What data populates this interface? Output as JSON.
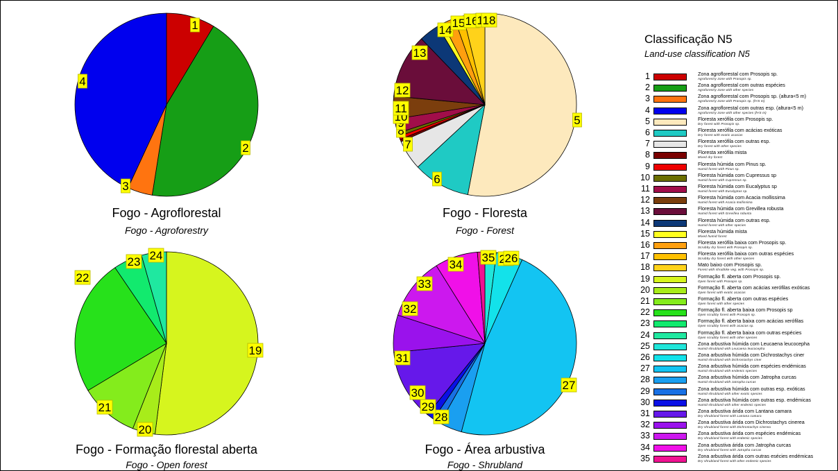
{
  "legend": {
    "title": "Classificação N5",
    "subtitle": "Land-use classification N5",
    "items": [
      {
        "id": "1",
        "color": "#cc0000",
        "pt": "Zona agroflorestal com Prosopis sp.",
        "en": "Agroforestry zone with Prosopis sp."
      },
      {
        "id": "2",
        "color": "#169e16",
        "pt": "Zona agroflorestal com outras espécies",
        "en": "Agroforestry zone with other species"
      },
      {
        "id": "3",
        "color": "#ff7410",
        "pt": "Zona agroflorestal com Prosopis sp. (altura<5 m)",
        "en": "Agroforestry zone with Prosopis sp. (h<5 m)"
      },
      {
        "id": "4",
        "color": "#0000ee",
        "pt": "Zona agroflorestal com outras esp. (altura<5 m)",
        "en": "Agroforestry zone with other species (h<5 m)"
      },
      {
        "id": "5",
        "color": "#fde9bd",
        "pt": "Floresta xerófila com Prosopis sp.",
        "en": "Dry forest with Prosopis sp."
      },
      {
        "id": "6",
        "color": "#1fcac4",
        "pt": "Floresta xerófila com acácias exóticas",
        "en": "Dry forest with exotic acacias"
      },
      {
        "id": "7",
        "color": "#e6e6e6",
        "pt": "Floresta xerófila com outras esp.",
        "en": "Dry forest with other species"
      },
      {
        "id": "8",
        "color": "#7a0000",
        "pt": "Floresta xerófila mista",
        "en": "Mixed dry forest"
      },
      {
        "id": "9",
        "color": "#ee0000",
        "pt": "Floresta húmida com Pinus sp.",
        "en": "Humid forest with Pinus sp."
      },
      {
        "id": "10",
        "color": "#6b6f00",
        "pt": "Floresta húmida com Cupressus sp",
        "en": "Humid forest with Cupressus sp."
      },
      {
        "id": "11",
        "color": "#a10e4a",
        "pt": "Floresta húmida com Eucalyptus sp",
        "en": "Humid forest with Eucalyptus sp."
      },
      {
        "id": "12",
        "color": "#7b3e0d",
        "pt": "Floresta húmida com Acacia mollissima",
        "en": "Humid forest with Acacia mollissima"
      },
      {
        "id": "13",
        "color": "#6a0d3a",
        "pt": "Floresta húmida com Grevillea robusta",
        "en": "Humid forest with Grevillea robusta"
      },
      {
        "id": "14",
        "color": "#0c3877",
        "pt": "Floresta húmida com outras esp.",
        "en": "Humid forest with other species"
      },
      {
        "id": "15",
        "color": "#ffff1f",
        "pt": "Floresta húmida mista",
        "en": "Mixed humid forest"
      },
      {
        "id": "16",
        "color": "#ff9f0f",
        "pt": "Floresta xerófila baixa com Prosopis sp.",
        "en": "Scrubby dry forest with Prosopis sp."
      },
      {
        "id": "17",
        "color": "#ffc000",
        "pt": "Floresta xerófila baixa com outras espécies",
        "en": "Scrubby dry forest with other species"
      },
      {
        "id": "18",
        "color": "#ffd21a",
        "pt": "Mato baixo com Prosopis sp.",
        "en": "Forest with shrublike veg. with Prosopis sp."
      },
      {
        "id": "19",
        "color": "#d6f51e",
        "pt": "Formação fl. aberta com Prosopis sp.",
        "en": "Open forest with Prosopis sp."
      },
      {
        "id": "20",
        "color": "#a8ec1a",
        "pt": "Formação fl. aberta com acácias xerófilas exóticas",
        "en": "Open forest with exotic acacias"
      },
      {
        "id": "21",
        "color": "#84ec1c",
        "pt": "Formação fl. aberta com outras espécies",
        "en": "Open forest with other species"
      },
      {
        "id": "22",
        "color": "#27e11b",
        "pt": "Formação fl. aberta baixa com Prosopis sp",
        "en": "Open scrubby forest with Prosopis sp."
      },
      {
        "id": "23",
        "color": "#12ea6e",
        "pt": "Formação fl. aberta baixa com acácias xerófilas",
        "en": "Open scrubby forest with acacias sp."
      },
      {
        "id": "24",
        "color": "#1fe8a0",
        "pt": "Formação fl. aberta baixa com outras espécies",
        "en": "Open scrubby forest with other species"
      },
      {
        "id": "25",
        "color": "#20e6da",
        "pt": "Zona arbustiva húmida com Leucaena leucocepha",
        "en": "Humid shrubland with Leucaena leucocepha"
      },
      {
        "id": "26",
        "color": "#13e2ea",
        "pt": "Zona arbustiva húmida com Dichrostachys ciner",
        "en": "Humid shrubland with Dichrostachys ciner"
      },
      {
        "id": "27",
        "color": "#13c4f2",
        "pt": "Zona arbustiva húmida com espécies endémicas",
        "en": "Humid shrubland with endemic species"
      },
      {
        "id": "28",
        "color": "#1a9ff0",
        "pt": "Zona arbustiva húmida com Jatropha curcas",
        "en": "Humid shrubland with Jatropha curcas"
      },
      {
        "id": "29",
        "color": "#1870e4",
        "pt": "Zona arbustiva húmida com outras esp. exóticas",
        "en": "Humid shrubland with other exotic species"
      },
      {
        "id": "30",
        "color": "#0a10e6",
        "pt": "Zona arbustiva húmida com outras esp. endémicas",
        "en": "Humid shrubland with other endemic species"
      },
      {
        "id": "31",
        "color": "#6618ea",
        "pt": "Zona arbustiva árida com Lantana camara",
        "en": "Dry shrubland forest with Lantana camara"
      },
      {
        "id": "32",
        "color": "#9a12ec",
        "pt": "Zona arbustiva árida com Dichrostachys cinerea",
        "en": "Dry shrubland forest with Dichrostachys cinerea"
      },
      {
        "id": "33",
        "color": "#cc18ee",
        "pt": "Zona arbustiva árida com espécies endémicas",
        "en": "Dry shrubland forest with endemic species"
      },
      {
        "id": "34",
        "color": "#f010e8",
        "pt": "Zona arbustiva árida com Jatropha curcas",
        "en": "Dry shrubland forest with Jatropha curcas"
      },
      {
        "id": "35",
        "color": "#f01292",
        "pt": "Zona arbustiva árida com outras esécies endémicas",
        "en": "Dry shrubland forest with other endemic species"
      }
    ]
  },
  "charts": [
    {
      "title": "Fogo - Agroflorestal",
      "subtitle": "Fogo - Agroforestry"
    },
    {
      "title": "Fogo - Floresta",
      "subtitle": "Fogo - Forest"
    },
    {
      "title": "Fogo - Formação florestal aberta",
      "subtitle": "Fogo - Open forest"
    },
    {
      "title": "Fogo - Área arbustiva",
      "subtitle": "Fogo - Shrubland"
    }
  ],
  "chart_data": [
    {
      "type": "pie",
      "title": "Fogo - Agroflorestal",
      "subtitle": "Fogo - Agroforestry",
      "slices": [
        {
          "label": "1",
          "value": 8.6
        },
        {
          "label": "2",
          "value": 43.9
        },
        {
          "label": "3",
          "value": 4.4
        },
        {
          "label": "4",
          "value": 43.1
        }
      ]
    },
    {
      "type": "pie",
      "title": "Fogo - Floresta",
      "subtitle": "Fogo - Forest",
      "slices": [
        {
          "label": "5",
          "value": 53.0
        },
        {
          "label": "6",
          "value": 10.1
        },
        {
          "label": "7",
          "value": 5.3
        },
        {
          "label": "8",
          "value": 0.4
        },
        {
          "label": "9",
          "value": 0.6
        },
        {
          "label": "10",
          "value": 0.6
        },
        {
          "label": "11",
          "value": 2.5
        },
        {
          "label": "12",
          "value": 4.0
        },
        {
          "label": "13",
          "value": 11.3
        },
        {
          "label": "14",
          "value": 3.6
        },
        {
          "label": "15",
          "value": 1.0
        },
        {
          "label": "16",
          "value": 2.2
        },
        {
          "label": "17",
          "value": 1.6
        },
        {
          "label": "18",
          "value": 3.8
        }
      ]
    },
    {
      "type": "pie",
      "title": "Fogo - Formação florestal aberta",
      "subtitle": "Fogo - Open forest",
      "slices": [
        {
          "label": "19",
          "value": 52.0
        },
        {
          "label": "20",
          "value": 4.0
        },
        {
          "label": "21",
          "value": 10.4
        },
        {
          "label": "22",
          "value": 24.1
        },
        {
          "label": "23",
          "value": 5.1
        },
        {
          "label": "24",
          "value": 4.4
        }
      ]
    },
    {
      "type": "pie",
      "title": "Fogo - Área arbustiva",
      "subtitle": "Fogo - Shrubland",
      "slices": [
        {
          "label": "25",
          "value": 2.0
        },
        {
          "label": "26",
          "value": 4.6
        },
        {
          "label": "27",
          "value": 47.0
        },
        {
          "label": "28",
          "value": 4.0
        },
        {
          "label": "29",
          "value": 1.3
        },
        {
          "label": "30",
          "value": 1.3
        },
        {
          "label": "31",
          "value": 12.5
        },
        {
          "label": "32",
          "value": 6.5
        },
        {
          "label": "33",
          "value": 11.0
        },
        {
          "label": "34",
          "value": 7.5
        },
        {
          "label": "35",
          "value": 1.3
        }
      ]
    }
  ]
}
